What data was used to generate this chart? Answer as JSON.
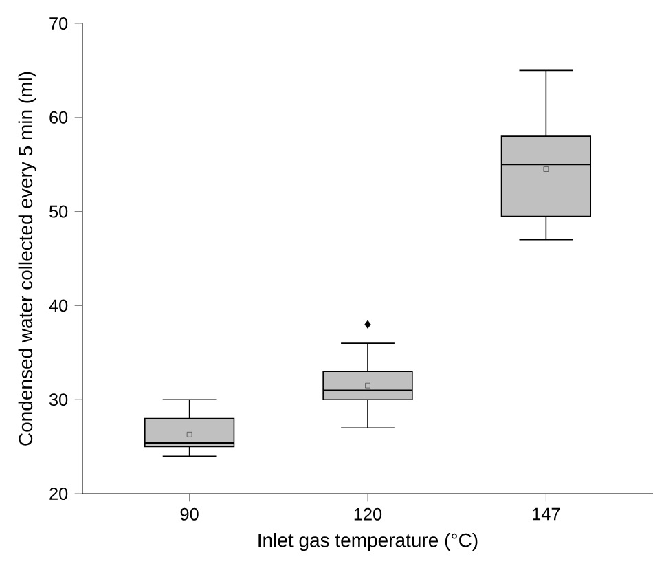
{
  "chart_data": {
    "type": "box",
    "xlabel": "Inlet gas temperature (°C)",
    "ylabel": "Condensed water collected every 5 min (ml)",
    "categories": [
      "90",
      "120",
      "147"
    ],
    "color": "#c0c0c0",
    "ylim": [
      20,
      70
    ],
    "yticks": [
      20,
      30,
      40,
      50,
      60,
      70
    ],
    "boxes": [
      {
        "low": 24,
        "q1": 25,
        "median": 25.4,
        "q3": 28,
        "high": 30,
        "mean": 26.3
      },
      {
        "low": 27,
        "q1": 30,
        "median": 31,
        "q3": 33,
        "high": 36,
        "mean": 31.5,
        "outliers": [
          38
        ]
      },
      {
        "low": 47,
        "q1": 49.5,
        "median": 55,
        "q3": 58,
        "high": 65,
        "mean": 54.5
      }
    ]
  }
}
